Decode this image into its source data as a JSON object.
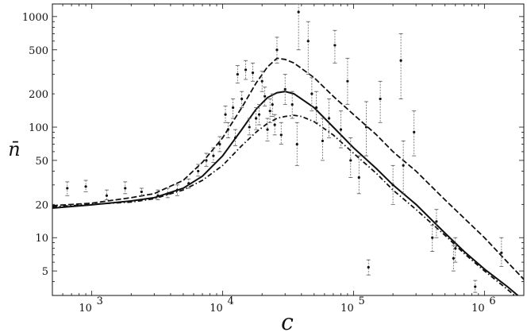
{
  "chart_data": {
    "type": "scatter",
    "title": "",
    "xlabel": "c",
    "ylabel": "n̄",
    "xscale": "log",
    "yscale": "log",
    "xlim": [
      500,
      2000000
    ],
    "ylim": [
      3,
      1300
    ],
    "grid": false,
    "legend": "none",
    "x_ticks": [
      {
        "value": 1000,
        "base": "10",
        "exp": "3"
      },
      {
        "value": 10000,
        "base": "10",
        "exp": "4"
      },
      {
        "value": 100000,
        "base": "10",
        "exp": "5"
      },
      {
        "value": 1000000,
        "base": "10",
        "exp": "6"
      }
    ],
    "y_ticks": [
      {
        "value": 5,
        "label": "5"
      },
      {
        "value": 10,
        "label": "10"
      },
      {
        "value": 20,
        "label": "20"
      },
      {
        "value": 50,
        "label": "50"
      },
      {
        "value": 100,
        "label": "100"
      },
      {
        "value": 200,
        "label": "200"
      },
      {
        "value": 500,
        "label": "500"
      },
      {
        "value": 1000,
        "label": "1000"
      }
    ],
    "series": [
      {
        "style": "solid",
        "points": [
          [
            500,
            18.5
          ],
          [
            1000,
            19.8
          ],
          [
            2000,
            21.5
          ],
          [
            3000,
            23
          ],
          [
            5000,
            28
          ],
          [
            7000,
            36
          ],
          [
            10000,
            55
          ],
          [
            14000,
            95
          ],
          [
            18000,
            145
          ],
          [
            22000,
            185
          ],
          [
            26000,
            205
          ],
          [
            30000,
            210
          ],
          [
            35000,
            200
          ],
          [
            40000,
            180
          ],
          [
            50000,
            150
          ],
          [
            70000,
            100
          ],
          [
            100000,
            65
          ],
          [
            150000,
            42
          ],
          [
            200000,
            30
          ],
          [
            300000,
            20
          ],
          [
            500000,
            11
          ],
          [
            700000,
            7.5
          ],
          [
            1000000,
            5.2
          ],
          [
            1500000,
            3.6
          ],
          [
            1800000,
            3.0
          ]
        ]
      },
      {
        "style": "dashed",
        "points": [
          [
            500,
            19.5
          ],
          [
            1000,
            20.5
          ],
          [
            2000,
            23
          ],
          [
            3000,
            25
          ],
          [
            5000,
            33
          ],
          [
            7000,
            48
          ],
          [
            10000,
            80
          ],
          [
            14000,
            150
          ],
          [
            18000,
            250
          ],
          [
            22000,
            350
          ],
          [
            26000,
            420
          ],
          [
            30000,
            410
          ],
          [
            35000,
            380
          ],
          [
            40000,
            340
          ],
          [
            50000,
            280
          ],
          [
            70000,
            190
          ],
          [
            100000,
            130
          ],
          [
            150000,
            85
          ],
          [
            200000,
            60
          ],
          [
            300000,
            40
          ],
          [
            500000,
            22
          ],
          [
            700000,
            15
          ],
          [
            1000000,
            10
          ],
          [
            1500000,
            6
          ],
          [
            2000000,
            4.2
          ]
        ]
      },
      {
        "style": "dash-dot",
        "points": [
          [
            500,
            19
          ],
          [
            1000,
            20
          ],
          [
            2000,
            21
          ],
          [
            3000,
            22.5
          ],
          [
            5000,
            27
          ],
          [
            7000,
            33
          ],
          [
            10000,
            45
          ],
          [
            14000,
            68
          ],
          [
            18000,
            90
          ],
          [
            22000,
            108
          ],
          [
            26000,
            120
          ],
          [
            30000,
            125
          ],
          [
            35000,
            128
          ],
          [
            40000,
            125
          ],
          [
            50000,
            112
          ],
          [
            70000,
            85
          ],
          [
            100000,
            58
          ],
          [
            150000,
            38
          ],
          [
            200000,
            27
          ],
          [
            300000,
            18
          ],
          [
            500000,
            10.5
          ],
          [
            700000,
            7.2
          ],
          [
            1000000,
            5
          ],
          [
            1500000,
            3.4
          ],
          [
            1700000,
            3.0
          ]
        ]
      }
    ],
    "observations": [
      [
        650,
        28,
        24,
        32
      ],
      [
        900,
        29,
        26,
        33
      ],
      [
        1300,
        24,
        22,
        27
      ],
      [
        1800,
        28,
        25,
        32
      ],
      [
        2400,
        26,
        24,
        28
      ],
      [
        3200,
        24,
        22,
        27
      ],
      [
        3800,
        25,
        23,
        28
      ],
      [
        4500,
        27,
        24,
        30
      ],
      [
        5500,
        31,
        28,
        34
      ],
      [
        6500,
        40,
        36,
        46
      ],
      [
        7500,
        50,
        44,
        58
      ],
      [
        8500,
        55,
        48,
        65
      ],
      [
        9500,
        70,
        60,
        82
      ],
      [
        10500,
        130,
        110,
        155
      ],
      [
        11000,
        95,
        80,
        110
      ],
      [
        12000,
        150,
        120,
        180
      ],
      [
        12500,
        80,
        68,
        95
      ],
      [
        13000,
        300,
        250,
        360
      ],
      [
        14000,
        180,
        150,
        210
      ],
      [
        15000,
        330,
        270,
        400
      ],
      [
        16000,
        100,
        85,
        120
      ],
      [
        17000,
        310,
        260,
        380
      ],
      [
        18000,
        120,
        95,
        150
      ],
      [
        19000,
        130,
        105,
        160
      ],
      [
        20000,
        260,
        210,
        320
      ],
      [
        21000,
        190,
        155,
        230
      ],
      [
        22000,
        95,
        75,
        120
      ],
      [
        23000,
        140,
        110,
        180
      ],
      [
        24000,
        160,
        125,
        200
      ],
      [
        25000,
        105,
        85,
        130
      ],
      [
        26000,
        500,
        380,
        650
      ],
      [
        28000,
        85,
        70,
        110
      ],
      [
        30000,
        220,
        160,
        300
      ],
      [
        34000,
        160,
        120,
        210
      ],
      [
        37000,
        70,
        45,
        110
      ],
      [
        38000,
        1100,
        500,
        1300
      ],
      [
        45000,
        600,
        300,
        900
      ],
      [
        48000,
        200,
        140,
        280
      ],
      [
        52000,
        150,
        110,
        210
      ],
      [
        58000,
        75,
        50,
        120
      ],
      [
        65000,
        120,
        80,
        180
      ],
      [
        72000,
        550,
        380,
        750
      ],
      [
        80000,
        95,
        65,
        140
      ],
      [
        90000,
        260,
        160,
        420
      ],
      [
        95000,
        50,
        35,
        80
      ],
      [
        110000,
        35,
        25,
        55
      ],
      [
        125000,
        100,
        55,
        170
      ],
      [
        130000,
        5.4,
        4.6,
        6.3
      ],
      [
        160000,
        180,
        110,
        260
      ],
      [
        200000,
        30,
        20,
        45
      ],
      [
        230000,
        400,
        180,
        700
      ],
      [
        240000,
        45,
        25,
        75
      ],
      [
        290000,
        90,
        55,
        140
      ],
      [
        400000,
        10,
        7.5,
        13
      ],
      [
        430000,
        14,
        10,
        18
      ],
      [
        580000,
        6.5,
        5,
        8.5
      ],
      [
        600000,
        8,
        6,
        10
      ],
      [
        850000,
        3.6,
        3.2,
        4.1
      ],
      [
        1350000,
        7.3,
        5.5,
        10
      ]
    ]
  }
}
